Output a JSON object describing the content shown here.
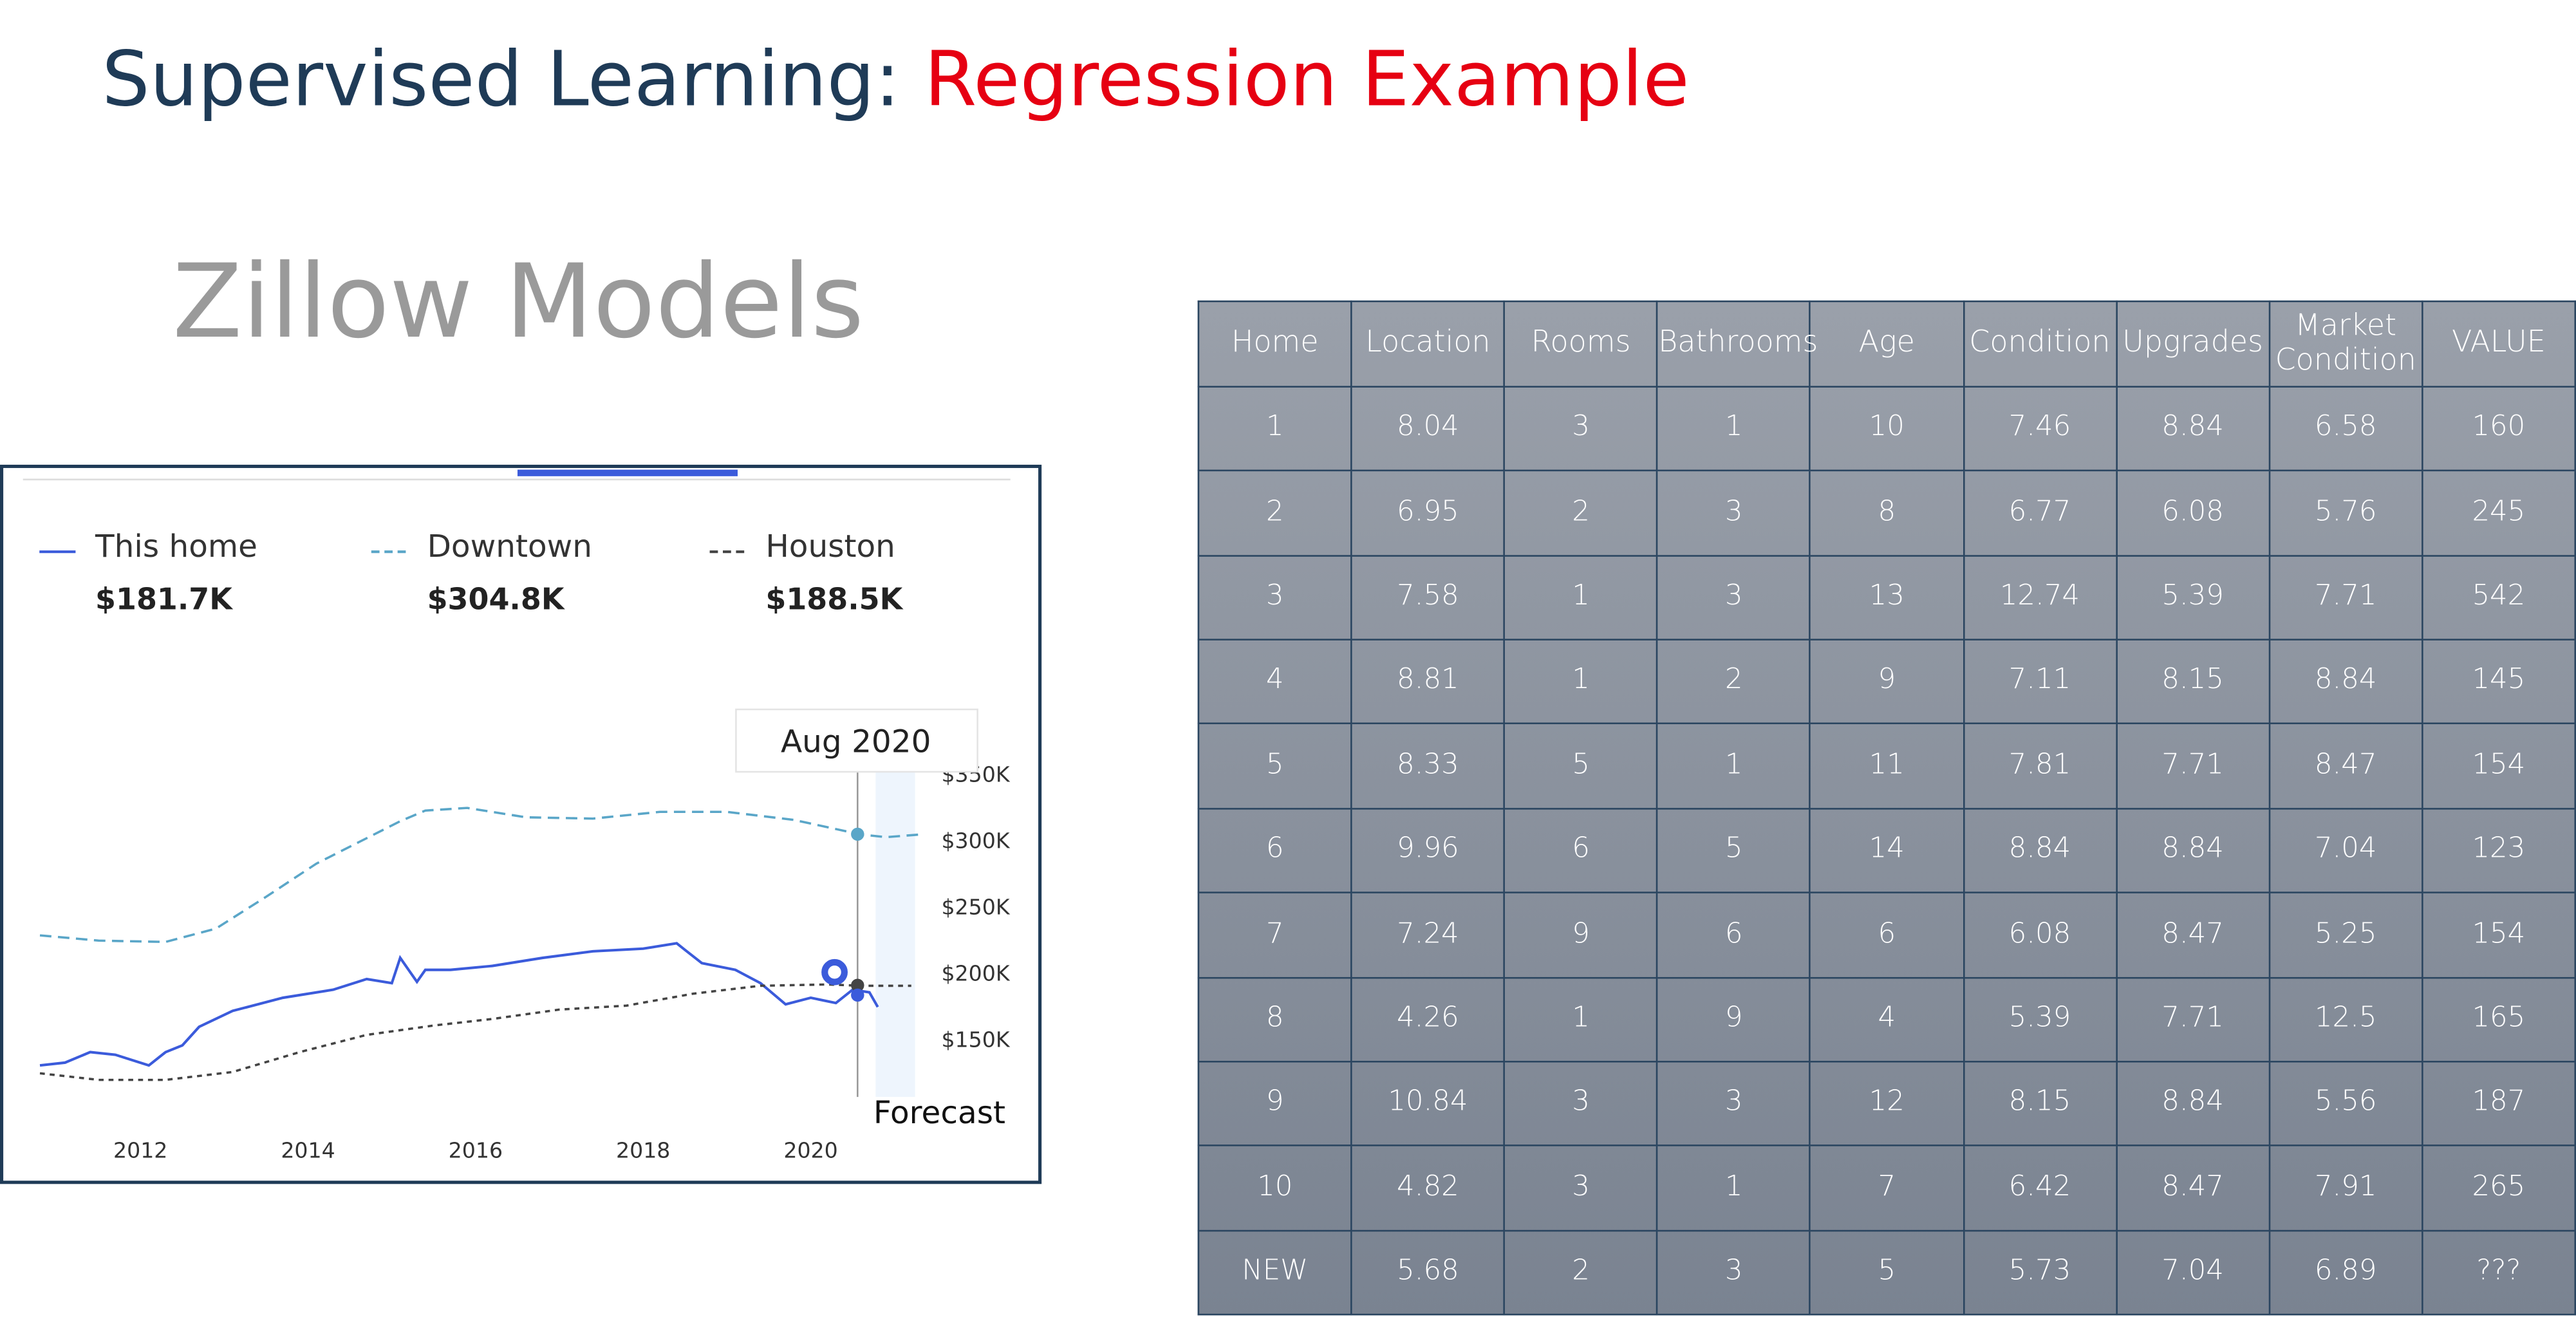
{
  "header": {
    "title": "Supervised Learning:",
    "title_highlight": "Regression Example",
    "subtitle": "Zillow Models"
  },
  "chart_data": {
    "type": "line",
    "tooltip": "Aug 2020",
    "annotation": "Forecast",
    "xlim": [
      2010.5,
      2021.5
    ],
    "xticks": [
      2012,
      2014,
      2016,
      2018,
      2020
    ],
    "ylim": [
      100000,
      350000
    ],
    "yticks": [
      {
        "value": 150000,
        "label": "$150K"
      },
      {
        "value": 200000,
        "label": "$200K"
      },
      {
        "value": 250000,
        "label": "$250K"
      },
      {
        "value": 300000,
        "label": "$300K"
      },
      {
        "value": 350000,
        "label": "$350K"
      }
    ],
    "series": [
      {
        "name": "This home",
        "color": "#3b5bdb",
        "dash": "solid",
        "current": {
          "value": 181700,
          "label": "$181.7K"
        },
        "x": [
          2010.8,
          2011.1,
          2011.4,
          2011.7,
          2012.1,
          2012.3,
          2012.5,
          2012.7,
          2013.1,
          2013.7,
          2014.3,
          2014.7,
          2015.0,
          2015.1,
          2015.3,
          2015.4,
          2015.7,
          2016.2,
          2016.8,
          2017.4,
          2018.0,
          2018.4,
          2018.5,
          2018.7,
          2019.1,
          2019.4,
          2019.7,
          2020.0,
          2020.3,
          2020.5,
          2020.7,
          2020.8
        ],
        "values": [
          130000,
          132000,
          140000,
          138000,
          130000,
          140000,
          145000,
          159000,
          171000,
          181000,
          187000,
          195000,
          192000,
          211000,
          193000,
          202000,
          202000,
          205000,
          211000,
          216000,
          218000,
          222000,
          217000,
          207000,
          202000,
          192000,
          176000,
          181000,
          177000,
          187000,
          185000,
          174000
        ]
      },
      {
        "name": "Downtown",
        "color": "#5aa6c8",
        "dash": "dashed",
        "current": {
          "value": 304800,
          "label": "$304.8K"
        },
        "x": [
          2010.8,
          2011.5,
          2012.3,
          2012.9,
          2013.5,
          2014.1,
          2014.6,
          2015.1,
          2015.4,
          2015.9,
          2016.6,
          2017.4,
          2018.2,
          2019.0,
          2019.8,
          2020.6,
          2020.9,
          2021.3
        ],
        "values": [
          228000,
          224000,
          223000,
          233000,
          257000,
          282000,
          298000,
          314000,
          322000,
          324000,
          317000,
          316000,
          321000,
          321000,
          315000,
          304000,
          302000,
          304000
        ]
      },
      {
        "name": "Houston",
        "color": "#444444",
        "dash": "dotted",
        "current": {
          "value": 188500,
          "label": "$188.5K"
        },
        "x": [
          2010.8,
          2011.5,
          2012.3,
          2013.1,
          2013.9,
          2014.7,
          2015.5,
          2016.2,
          2017.0,
          2017.8,
          2018.6,
          2019.4,
          2020.2,
          2020.6,
          2021.2
        ],
        "values": [
          124000,
          119000,
          119000,
          125000,
          140000,
          153000,
          160000,
          165000,
          172000,
          175000,
          184000,
          190000,
          191000,
          190000,
          190000
        ]
      }
    ]
  },
  "table": {
    "header": [
      "Home",
      "Location",
      "Rooms",
      "Bathrooms",
      "Age",
      "Condition",
      "Upgrades",
      "Market Condition",
      "VALUE"
    ],
    "rows": [
      [
        1,
        8.04,
        3,
        1,
        10,
        7.46,
        8.84,
        6.58,
        160
      ],
      [
        2,
        6.95,
        2,
        3,
        8,
        6.77,
        6.08,
        5.76,
        245
      ],
      [
        3,
        7.58,
        1,
        3,
        13,
        12.74,
        5.39,
        7.71,
        542
      ],
      [
        4,
        8.81,
        1,
        2,
        9,
        7.11,
        8.15,
        8.84,
        145
      ],
      [
        5,
        8.33,
        5,
        1,
        11,
        7.81,
        7.71,
        8.47,
        154
      ],
      [
        6,
        9.96,
        6,
        5,
        14,
        8.84,
        8.84,
        7.04,
        123
      ],
      [
        7,
        7.24,
        9,
        6,
        6,
        6.08,
        8.47,
        5.25,
        154
      ],
      [
        8,
        4.26,
        1,
        9,
        4,
        5.39,
        7.71,
        12.5,
        165
      ],
      [
        9,
        10.84,
        3,
        3,
        12,
        8.15,
        8.84,
        5.56,
        187
      ],
      [
        10,
        4.82,
        3,
        1,
        7,
        6.42,
        8.47,
        7.91,
        265
      ],
      [
        "NEW",
        5.68,
        2,
        3,
        5,
        5.73,
        7.04,
        6.89,
        "???"
      ]
    ]
  }
}
